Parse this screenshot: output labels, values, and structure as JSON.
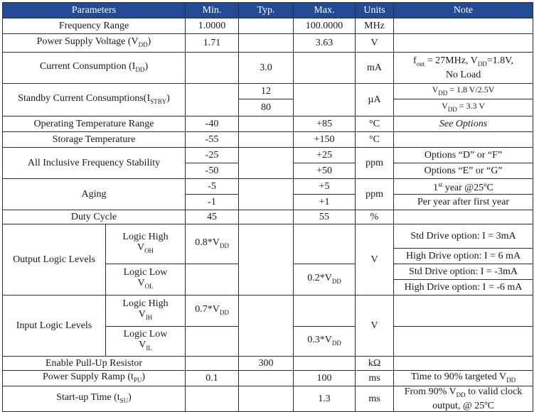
{
  "header": {
    "parameters": "Parameters",
    "min": "Min.",
    "typ": "Typ.",
    "max": "Max.",
    "units": "Units",
    "note": "Note"
  },
  "rows": {
    "freq": {
      "param": "Frequency Range",
      "min": "1.0000",
      "max": "100.0000",
      "unit": "MHz"
    },
    "vdd": {
      "param": "Power Supply Voltage (V",
      "param_sub": "DD",
      "param_end": ")",
      "min": "1.71",
      "max": "3.63",
      "unit": "V"
    },
    "idd": {
      "param": "Current Consumption (I",
      "param_sub": "DD",
      "param_end": ")",
      "typ": "3.0",
      "unit": "mA",
      "note_f": "f",
      "note_f_sub": "out",
      "note_mid": " = 27MHz, V",
      "note_v_sub": "DD",
      "note_end": "=1.8V,",
      "note_line2": "No Load"
    },
    "istby": {
      "param": "Standby Current Consumptions(I",
      "param_sub": "STBY",
      "param_end": ")",
      "typ1": "12",
      "typ2": "80",
      "unit": "µA",
      "note1_a": "V",
      "note1_sub": "DD",
      "note1_b": " = 1.8 V/2.5V",
      "note2_a": "V",
      "note2_sub": "DD",
      "note2_b": " = 3.3 V"
    },
    "optemp": {
      "param": "Operating Temperature Range",
      "min": "-40",
      "max": "+85",
      "unit": "°C",
      "note": "See Options"
    },
    "sttemp": {
      "param": "Storage Temperature",
      "min": "-55",
      "max": "+150",
      "unit": "°C"
    },
    "stab": {
      "param": "All Inclusive Frequency Stability",
      "min1": "-25",
      "max1": "+25",
      "min2": "-50",
      "max2": "+50",
      "unit": "ppm",
      "note1": "Options “D” or “F”",
      "note2": "Options “E” or “G”"
    },
    "aging": {
      "param": "Aging",
      "min1": "-5",
      "max1": "+5",
      "min2": "-1",
      "max2": "+1",
      "unit": "ppm",
      "note1_a": "1",
      "note1_sup": "st",
      "note1_b": " year @25ºC",
      "note2": "Per year after first year"
    },
    "duty": {
      "param": "Duty Cycle",
      "min": "45",
      "max": "55",
      "unit": "%"
    },
    "outlogic": {
      "param": "Output Logic Levels",
      "high_label": "Logic High",
      "high_v": "V",
      "high_sub": "OH",
      "low_label": "Logic Low",
      "low_v": "V",
      "low_sub": "OL",
      "min_a": "0.8*V",
      "min_sub": "DD",
      "max_a": "0.2*V",
      "max_sub": "DD",
      "unit": "V",
      "note1": "Std Drive option: I = 3mA",
      "note2": "High Drive option: I = 6 mA",
      "note3": "Std Drive option: I = -3mA",
      "note4": "High Drive option: I = -6 mA"
    },
    "inlogic": {
      "param": "Input Logic Levels",
      "high_label": "Logic High",
      "high_v": "V",
      "high_sub": "IH",
      "low_label": "Logic Low",
      "low_v": "V",
      "low_sub": "IL",
      "min_a": "0.7*V",
      "min_sub": "DD",
      "max_a": "0.3*V",
      "max_sub": "DD",
      "unit": "V"
    },
    "pullup": {
      "param": "Enable Pull-Up Resistor",
      "typ": "300",
      "unit": "kΩ"
    },
    "ramp": {
      "param": "Power Supply Ramp (t",
      "param_sub": "PU",
      "param_end": ")",
      "min": "0.1",
      "max": "100",
      "unit": "ms",
      "note_a": "Time to 90% targeted V",
      "note_sub": "DD"
    },
    "startup": {
      "param": "Start-up Time (t",
      "param_sub": "SU",
      "param_end": ")",
      "max": "1.3",
      "unit": "ms",
      "note_a": "From 90% V",
      "note_sub": "DD",
      "note_b": " to valid clock",
      "note_line2": "output, @ 25ºC"
    }
  }
}
